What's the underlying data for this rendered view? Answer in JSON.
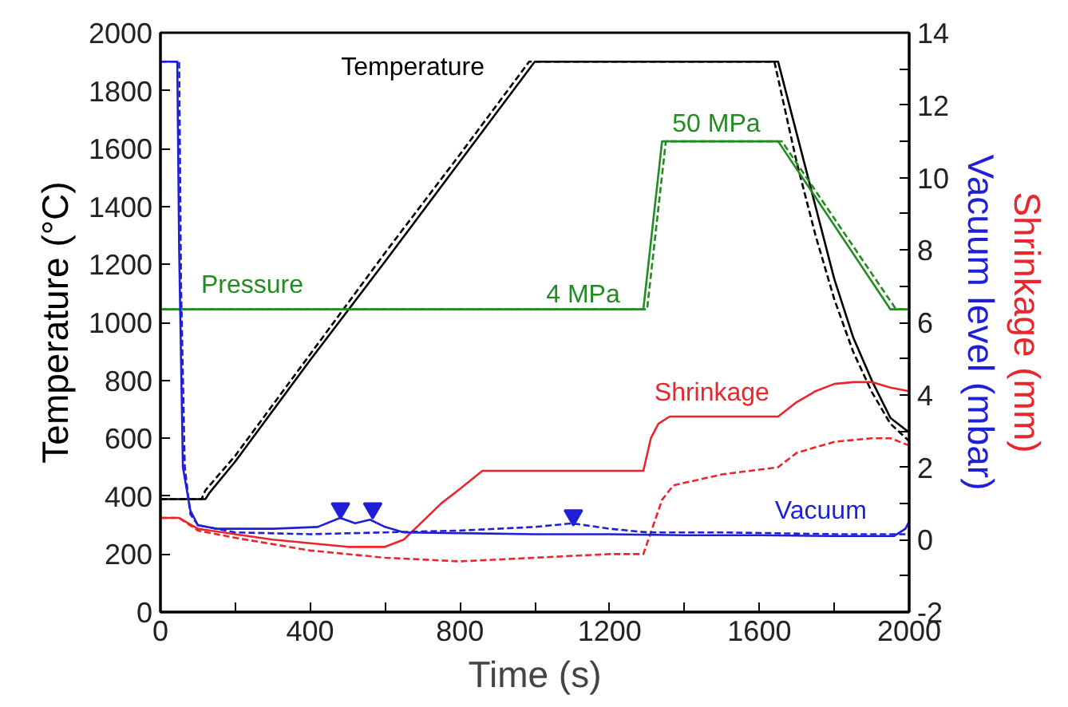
{
  "chart_data": {
    "type": "line",
    "xlabel": "Time (s)",
    "ylabel": "Temperature (°C)",
    "y2label": "Vacuum level (mbar)",
    "y3label": "Shrinkage (mm)",
    "xlim": [
      0,
      2000
    ],
    "xticks": [
      0,
      {
        "value": 200,
        "label": null
      },
      400,
      {
        "value": 600,
        "label": null
      },
      800,
      {
        "value": 1000,
        "label": null
      },
      1200,
      {
        "value": 1400,
        "label": null
      },
      1600,
      {
        "value": 1800,
        "label": null
      },
      2000
    ],
    "ylim": [
      0,
      2000
    ],
    "yticks": [
      0,
      200,
      400,
      600,
      800,
      1000,
      1200,
      1400,
      1600,
      1800,
      2000
    ],
    "y2lim": [
      -2,
      14
    ],
    "y2ticks": [
      -2,
      {
        "value": -1,
        "label": null
      },
      0,
      {
        "value": 1,
        "label": null
      },
      2,
      {
        "value": 3,
        "label": null
      },
      4,
      {
        "value": 5,
        "label": null
      },
      6,
      {
        "value": 7,
        "label": null
      },
      8,
      {
        "value": 9,
        "label": null
      },
      10,
      {
        "value": 11,
        "label": null
      },
      12,
      {
        "value": 13,
        "label": null
      },
      14
    ],
    "grid": false,
    "annotations": [
      "4 MPa",
      "50 MPa"
    ],
    "series": [
      {
        "name": "Temperature",
        "color": "#000000",
        "line_style": "solid",
        "x": [
          0,
          120,
          130,
          200,
          400,
          600,
          800,
          1000,
          1200,
          1400,
          1600,
          1650,
          1700,
          1750,
          1800,
          1850,
          1900,
          1950,
          2000
        ],
        "values": [
          390,
          390,
          410,
          520,
          870,
          1210,
          1555,
          1900,
          1900,
          1900,
          1900,
          1900,
          1650,
          1400,
          1150,
          950,
          800,
          670,
          620
        ]
      },
      {
        "color": "#000000",
        "line_style": "dashed",
        "x": [
          0,
          110,
          120,
          200,
          400,
          600,
          800,
          985,
          1640,
          1700,
          1750,
          1800,
          1850,
          1900,
          1950,
          2000
        ],
        "values": [
          390,
          390,
          420,
          540,
          890,
          1240,
          1580,
          1900,
          1900,
          1550,
          1300,
          1080,
          900,
          760,
          650,
          590
        ]
      },
      {
        "name": "Pressure",
        "color": "#228b22",
        "line_style": "solid",
        "x": [
          0,
          1290,
          1340,
          1650,
          1950,
          2000
        ],
        "values": [
          1045,
          1045,
          1625,
          1625,
          1045,
          1045
        ]
      },
      {
        "color": "#228b22",
        "line_style": "dashed",
        "x": [
          0,
          1300,
          1350,
          1660,
          1965,
          2000
        ],
        "values": [
          1045,
          1045,
          1625,
          1625,
          1045,
          1045
        ]
      },
      {
        "name": "Shrinkage",
        "color": "#e8262b",
        "line_style": "solid",
        "axis": "y2",
        "x": [
          0,
          50,
          100,
          200,
          300,
          400,
          500,
          600,
          650,
          700,
          750,
          800,
          860,
          1000,
          1290,
          1310,
          1330,
          1360,
          1500,
          1650,
          1700,
          1750,
          1800,
          1850,
          1900,
          1950,
          2000
        ],
        "values": [
          0.6,
          0.6,
          0.3,
          0.15,
          0.0,
          -0.1,
          -0.2,
          -0.2,
          0.0,
          0.5,
          1.0,
          1.4,
          1.9,
          1.9,
          1.9,
          2.8,
          3.2,
          3.4,
          3.4,
          3.4,
          3.8,
          4.1,
          4.3,
          4.35,
          4.35,
          4.2,
          4.1
        ]
      },
      {
        "color": "#e8262b",
        "line_style": "dashed",
        "axis": "y2",
        "x": [
          0,
          50,
          100,
          200,
          400,
          600,
          800,
          1000,
          1200,
          1290,
          1310,
          1340,
          1370,
          1500,
          1650,
          1700,
          1800,
          1900,
          1950,
          2000
        ],
        "values": [
          0.6,
          0.6,
          0.25,
          0.05,
          -0.3,
          -0.5,
          -0.6,
          -0.5,
          -0.4,
          -0.4,
          0.2,
          1.1,
          1.5,
          1.8,
          2.0,
          2.4,
          2.7,
          2.8,
          2.8,
          2.6
        ]
      },
      {
        "name": "Vacuum",
        "color": "#1f1fd6",
        "line_style": "solid",
        "axis": "y2",
        "x": [
          0,
          45,
          50,
          60,
          80,
          100,
          150,
          300,
          420,
          480,
          520,
          560,
          600,
          650,
          800,
          1000,
          1200,
          1400,
          1600,
          1800,
          1960,
          1990,
          2000
        ],
        "values": [
          13.2,
          13.2,
          8,
          2,
          0.8,
          0.4,
          0.3,
          0.3,
          0.35,
          0.6,
          0.45,
          0.55,
          0.35,
          0.2,
          0.18,
          0.15,
          0.15,
          0.12,
          0.12,
          0.1,
          0.1,
          0.3,
          0.5
        ]
      },
      {
        "color": "#1f1fd6",
        "line_style": "dashed",
        "axis": "y2",
        "x": [
          0,
          50,
          55,
          65,
          80,
          100,
          200,
          400,
          600,
          800,
          1000,
          1100,
          1200,
          1300,
          1500,
          1800,
          2000
        ],
        "values": [
          13.2,
          13.2,
          7,
          2,
          0.7,
          0.4,
          0.2,
          0.15,
          0.2,
          0.25,
          0.35,
          0.45,
          0.3,
          0.2,
          0.2,
          0.15,
          0.15
        ]
      },
      {
        "type": "scatter",
        "marker": "triangle",
        "color": "#1f1fd6",
        "axis": "y2",
        "x": [
          481,
          567,
          1103
        ],
        "values": [
          0.86,
          0.86,
          0.67
        ]
      }
    ]
  }
}
